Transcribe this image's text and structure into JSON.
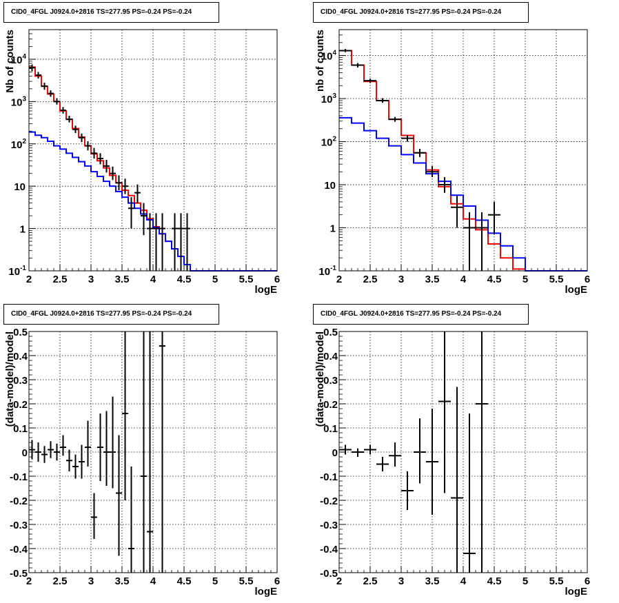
{
  "colors": {
    "data": "#000000",
    "model": "#ff0000",
    "background": "#0000ff",
    "grid": "#000000"
  },
  "chart_data": [
    {
      "type": "line",
      "title": "CID0_4FGL J0924.0+2816 TS=277.95 PS=-0.24 PS=-0.24",
      "xlabel": "logE",
      "ylabel": "Nb of counts",
      "xlim": [
        2,
        6
      ],
      "ylim": [
        0.1,
        50000
      ],
      "ylog": true,
      "grid": true,
      "x_ticks": [
        "2",
        "2.5",
        "3",
        "3.5",
        "4",
        "4.5",
        "5",
        "5.5",
        "6"
      ],
      "y_ticks": [
        "10^-1",
        "1",
        "10",
        "10^2",
        "10^3",
        "10^4"
      ],
      "bin_edges": [
        2.0,
        2.1,
        2.2,
        2.3,
        2.4,
        2.5,
        2.6,
        2.7,
        2.8,
        2.9,
        3.0,
        3.1,
        3.2,
        3.3,
        3.4,
        3.5,
        3.6,
        3.7,
        3.8,
        3.9,
        4.0,
        4.1,
        4.2,
        4.3,
        4.4,
        4.5,
        4.6,
        4.7,
        4.8,
        4.9,
        5.0,
        5.1,
        5.2,
        5.3,
        5.4,
        5.5,
        5.6,
        5.7,
        5.8,
        5.9,
        6.0
      ],
      "series": [
        {
          "kind": "model",
          "values": [
            6500,
            4000,
            2300,
            1500,
            1000,
            600,
            380,
            230,
            145,
            90,
            58,
            40,
            27,
            18,
            12,
            8,
            6,
            4,
            2.7,
            1.7,
            1.1,
            0.75,
            0.5,
            0.33,
            0.22,
            0.14,
            0.1,
            0.1,
            0.1,
            0.1,
            0.1,
            0.1,
            0.1,
            0.1,
            0.1,
            0.1,
            0.1,
            0.1,
            0.1,
            0.1
          ]
        },
        {
          "kind": "background",
          "values": [
            190,
            160,
            140,
            115,
            90,
            75,
            60,
            48,
            38,
            30,
            22,
            17,
            13,
            10,
            7.5,
            5.5,
            4,
            3,
            2.2,
            1.6,
            1.05,
            0.75,
            0.5,
            0.33,
            0.22,
            0.14,
            0.1,
            0.1,
            0.1,
            0.1,
            0.1,
            0.1,
            0.1,
            0.1,
            0.1,
            0.1,
            0.1,
            0.1,
            0.1,
            0.1
          ]
        },
        {
          "kind": "data",
          "points": [
            {
              "x": 2.05,
              "y": 6300,
              "lo": 5200,
              "hi": 7500
            },
            {
              "x": 2.15,
              "y": 4200,
              "lo": 3500,
              "hi": 5000
            },
            {
              "x": 2.25,
              "y": 2300,
              "lo": 1900,
              "hi": 2800
            },
            {
              "x": 2.35,
              "y": 1550,
              "lo": 1300,
              "hi": 1850
            },
            {
              "x": 2.45,
              "y": 1000,
              "lo": 850,
              "hi": 1200
            },
            {
              "x": 2.55,
              "y": 620,
              "lo": 520,
              "hi": 740
            },
            {
              "x": 2.65,
              "y": 380,
              "lo": 320,
              "hi": 460
            },
            {
              "x": 2.75,
              "y": 220,
              "lo": 180,
              "hi": 270
            },
            {
              "x": 2.85,
              "y": 140,
              "lo": 110,
              "hi": 175
            },
            {
              "x": 2.95,
              "y": 90,
              "lo": 70,
              "hi": 115
            },
            {
              "x": 3.05,
              "y": 60,
              "lo": 45,
              "hi": 80
            },
            {
              "x": 3.15,
              "y": 45,
              "lo": 33,
              "hi": 60
            },
            {
              "x": 3.25,
              "y": 30,
              "lo": 21,
              "hi": 42
            },
            {
              "x": 3.35,
              "y": 20,
              "lo": 14,
              "hi": 29
            },
            {
              "x": 3.45,
              "y": 12,
              "lo": 8,
              "hi": 18
            },
            {
              "x": 3.55,
              "y": 10,
              "lo": 6.5,
              "hi": 15
            },
            {
              "x": 3.65,
              "y": 3,
              "lo": 1,
              "hi": 5.5
            },
            {
              "x": 3.75,
              "y": 7,
              "lo": 4,
              "hi": 11
            },
            {
              "x": 3.85,
              "y": 2,
              "lo": 0.7,
              "hi": 4
            },
            {
              "x": 3.95,
              "y": 1,
              "lo": 0.1,
              "hi": 2.3
            },
            {
              "x": 4.05,
              "y": 1,
              "lo": 0.1,
              "hi": 2.3
            },
            {
              "x": 4.15,
              "y": 1,
              "lo": 0.1,
              "hi": 2.3
            },
            {
              "x": 4.35,
              "y": 1,
              "lo": 0.1,
              "hi": 2.3
            },
            {
              "x": 4.45,
              "y": 1,
              "lo": 0.1,
              "hi": 2.3
            },
            {
              "x": 4.55,
              "y": 1,
              "lo": 0.1,
              "hi": 2.3
            }
          ]
        }
      ]
    },
    {
      "type": "line",
      "title": "CID0_4FGL J0924.0+2816 TS=277.95 PS=-0.24 PS=-0.24",
      "xlabel": "logE",
      "ylabel": "nb of counts",
      "xlim": [
        2,
        6
      ],
      "ylim": [
        0.1,
        40000
      ],
      "ylog": true,
      "grid": true,
      "x_ticks": [
        "2",
        "2.5",
        "3",
        "3.5",
        "4",
        "4.5",
        "5",
        "5.5",
        "6"
      ],
      "y_ticks": [
        "10^-1",
        "1",
        "10",
        "10^2",
        "10^3",
        "10^4"
      ],
      "bin_edges": [
        2.0,
        2.2,
        2.4,
        2.6,
        2.8,
        3.0,
        3.2,
        3.4,
        3.6,
        3.8,
        4.0,
        4.2,
        4.4,
        4.6,
        4.8,
        5.0,
        5.2,
        5.4,
        5.6,
        5.8,
        6.0
      ],
      "series": [
        {
          "kind": "model",
          "values": [
            13000,
            6000,
            2500,
            900,
            330,
            140,
            55,
            22,
            9,
            3.6,
            1.6,
            0.9,
            0.42,
            0.2,
            0.11,
            0.1,
            0.1,
            0.1,
            0.1,
            0.1
          ]
        },
        {
          "kind": "background",
          "values": [
            360,
            270,
            180,
            120,
            80,
            50,
            32,
            18,
            12,
            5.7,
            3.2,
            1.5,
            0.75,
            0.38,
            0.2,
            0.1,
            0.1,
            0.1,
            0.1,
            0.1
          ]
        },
        {
          "kind": "data",
          "points": [
            {
              "x": 2.1,
              "y": 13000,
              "lo": 12000,
              "hi": 14200
            },
            {
              "x": 2.3,
              "y": 6000,
              "lo": 5300,
              "hi": 6700
            },
            {
              "x": 2.5,
              "y": 2600,
              "lo": 2300,
              "hi": 2900
            },
            {
              "x": 2.7,
              "y": 900,
              "lo": 800,
              "hi": 1020
            },
            {
              "x": 2.9,
              "y": 330,
              "lo": 290,
              "hi": 375
            },
            {
              "x": 3.1,
              "y": 120,
              "lo": 100,
              "hi": 142
            },
            {
              "x": 3.3,
              "y": 55,
              "lo": 44,
              "hi": 68
            },
            {
              "x": 3.5,
              "y": 20,
              "lo": 15,
              "hi": 27
            },
            {
              "x": 3.7,
              "y": 10,
              "lo": 6.5,
              "hi": 15
            },
            {
              "x": 3.9,
              "y": 3,
              "lo": 1,
              "hi": 5.5
            },
            {
              "x": 4.1,
              "y": 1,
              "lo": 0.1,
              "hi": 2.3
            },
            {
              "x": 4.3,
              "y": 1,
              "lo": 0.1,
              "hi": 2.3
            },
            {
              "x": 4.5,
              "y": 2,
              "lo": 0.7,
              "hi": 4
            }
          ]
        }
      ]
    },
    {
      "type": "scatter",
      "title": "CID0_4FGL J0924.0+2816 TS=277.95 PS=-0.24 PS=-0.24",
      "xlabel": "logE",
      "ylabel": "(data-model)/model",
      "xlim": [
        2,
        6
      ],
      "ylim": [
        -0.5,
        0.5
      ],
      "grid": true,
      "x_ticks": [
        "2",
        "2.5",
        "3",
        "3.5",
        "4",
        "4.5",
        "5",
        "5.5",
        "6"
      ],
      "y_ticks": [
        "-0.5",
        "-0.4",
        "-0.3",
        "-0.2",
        "-0.1",
        "0",
        "0.1",
        "0.2",
        "0.3",
        "0.4",
        "0.5"
      ],
      "points": [
        {
          "x": 2.05,
          "y": 0.01,
          "lo": -0.03,
          "hi": 0.05
        },
        {
          "x": 2.15,
          "y": 0.0,
          "lo": -0.04,
          "hi": 0.04
        },
        {
          "x": 2.25,
          "y": -0.01,
          "lo": -0.045,
          "hi": 0.025
        },
        {
          "x": 2.35,
          "y": 0.01,
          "lo": -0.025,
          "hi": 0.045
        },
        {
          "x": 2.45,
          "y": 0.0,
          "lo": -0.035,
          "hi": 0.035
        },
        {
          "x": 2.55,
          "y": 0.02,
          "lo": -0.015,
          "hi": 0.07
        },
        {
          "x": 2.65,
          "y": -0.035,
          "lo": -0.08,
          "hi": 0.01
        },
        {
          "x": 2.75,
          "y": -0.06,
          "lo": -0.11,
          "hi": -0.01
        },
        {
          "x": 2.85,
          "y": -0.04,
          "lo": -0.11,
          "hi": 0.03
        },
        {
          "x": 2.95,
          "y": 0.02,
          "lo": -0.06,
          "hi": 0.13
        },
        {
          "x": 3.05,
          "y": -0.27,
          "lo": -0.36,
          "hi": -0.17
        },
        {
          "x": 3.15,
          "y": 0.02,
          "lo": -0.12,
          "hi": 0.16
        },
        {
          "x": 3.25,
          "y": 0.0,
          "lo": -0.14,
          "hi": 0.17
        },
        {
          "x": 3.35,
          "y": 0.0,
          "lo": -0.15,
          "hi": 0.23
        },
        {
          "x": 3.45,
          "y": -0.17,
          "lo": -0.43,
          "hi": 0.07
        },
        {
          "x": 3.55,
          "y": 0.16,
          "lo": -0.2,
          "hi": 0.5
        },
        {
          "x": 3.65,
          "y": -0.4,
          "lo": -0.5,
          "hi": -0.06
        },
        {
          "x": 3.85,
          "y": -0.1,
          "lo": -0.5,
          "hi": 0.5
        },
        {
          "x": 3.95,
          "y": -0.33,
          "lo": -0.5,
          "hi": 0.5
        },
        {
          "x": 4.15,
          "y": 0.44,
          "lo": -0.5,
          "hi": 0.5
        }
      ]
    },
    {
      "type": "scatter",
      "title": "CID0_4FGL J0924.0+2816 TS=277.95 PS=-0.24 PS=-0.24",
      "xlabel": "logE",
      "ylabel": "(data-model)/model",
      "xlim": [
        2,
        6
      ],
      "ylim": [
        -0.5,
        0.5
      ],
      "grid": true,
      "x_ticks": [
        "2",
        "2.5",
        "3",
        "3.5",
        "4",
        "4.5",
        "5",
        "5.5",
        "6"
      ],
      "y_ticks": [
        "-0.5",
        "-0.4",
        "-0.3",
        "-0.2",
        "-0.1",
        "0",
        "0.1",
        "0.2",
        "0.3",
        "0.4",
        "0.5"
      ],
      "points": [
        {
          "x": 2.1,
          "y": 0.01,
          "lo": -0.01,
          "hi": 0.03
        },
        {
          "x": 2.3,
          "y": 0.0,
          "lo": -0.02,
          "hi": 0.015
        },
        {
          "x": 2.5,
          "y": 0.01,
          "lo": -0.01,
          "hi": 0.03
        },
        {
          "x": 2.7,
          "y": -0.05,
          "lo": -0.08,
          "hi": -0.02
        },
        {
          "x": 2.9,
          "y": -0.015,
          "lo": -0.06,
          "hi": 0.04
        },
        {
          "x": 3.1,
          "y": -0.16,
          "lo": -0.24,
          "hi": -0.08
        },
        {
          "x": 3.3,
          "y": 0.0,
          "lo": -0.13,
          "hi": 0.14
        },
        {
          "x": 3.5,
          "y": -0.04,
          "lo": -0.26,
          "hi": 0.18
        },
        {
          "x": 3.7,
          "y": 0.21,
          "lo": -0.17,
          "hi": 0.5
        },
        {
          "x": 3.9,
          "y": -0.19,
          "lo": -0.5,
          "hi": 0.27
        },
        {
          "x": 4.1,
          "y": -0.42,
          "lo": -0.5,
          "hi": 0.16
        },
        {
          "x": 4.3,
          "y": 0.2,
          "lo": -0.5,
          "hi": 0.5
        }
      ]
    }
  ]
}
